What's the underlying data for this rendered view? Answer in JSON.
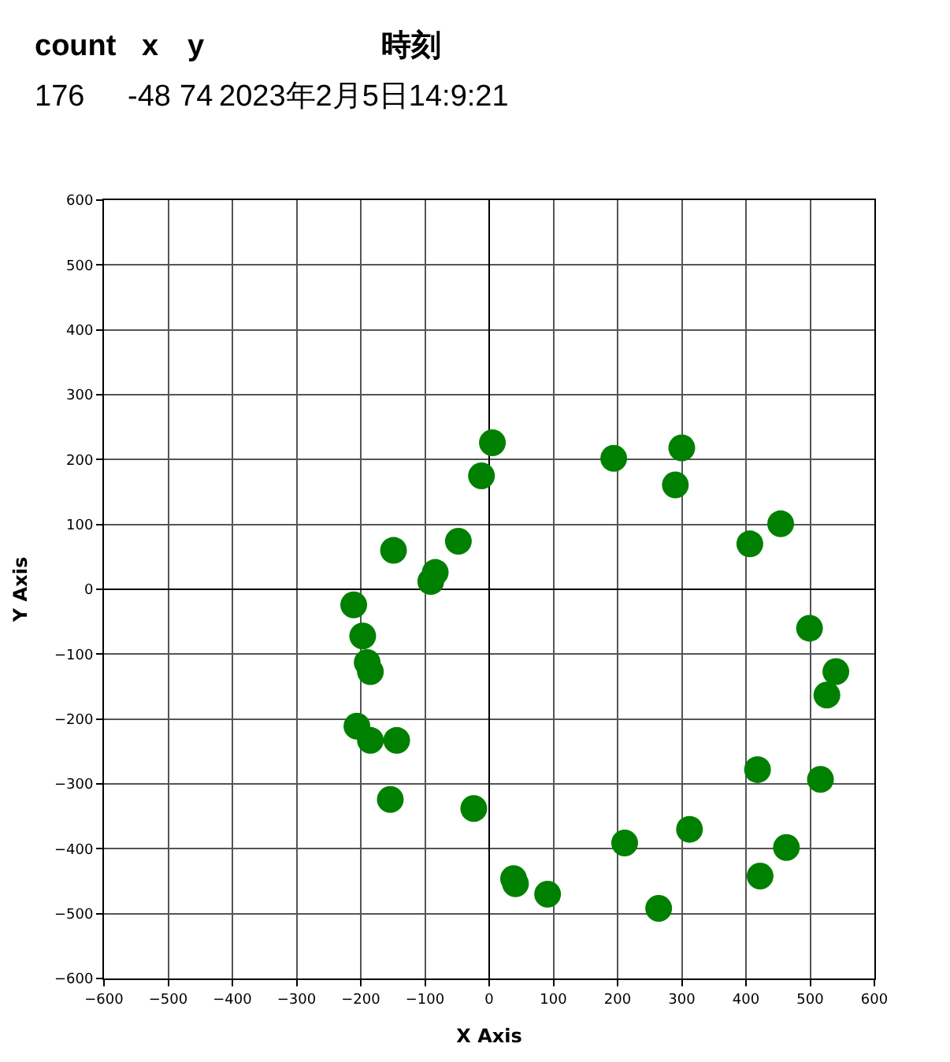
{
  "chart_data": {
    "type": "scatter",
    "xlabel": "X Axis",
    "ylabel": "Y Axis",
    "annotations": [
      "count",
      "x",
      "y",
      "時刻",
      "176",
      "-48",
      "74",
      "2023年2月5日14:9:21"
    ],
    "x": [
      5,
      -12,
      -48,
      -149,
      -84,
      -91,
      -211,
      -197,
      -190,
      -185,
      -206,
      -185,
      -144,
      -154,
      -24,
      38,
      41,
      91,
      264,
      194,
      300,
      290,
      454,
      406,
      499,
      540,
      526,
      418,
      516,
      312,
      211,
      463,
      422
    ],
    "series": [
      {
        "color": "#008000",
        "values": [
          226,
          175,
          74,
          60,
          26,
          12,
          -24,
          -72,
          -113,
          -127,
          -211,
          -233,
          -233,
          -324,
          -338,
          -446,
          -454,
          -470,
          -492,
          202,
          218,
          161,
          101,
          70,
          -60,
          -127,
          -163,
          -278,
          -293,
          -370,
          -391,
          -398,
          -442
        ]
      }
    ],
    "xlim": [
      -600,
      600
    ],
    "ylim": [
      -600,
      600
    ],
    "xticks": [
      -600,
      -500,
      -400,
      -300,
      -200,
      -100,
      0,
      100,
      200,
      300,
      400,
      500,
      600
    ],
    "yticks": [
      -600,
      -500,
      -400,
      -300,
      -200,
      -100,
      0,
      100,
      200,
      300,
      400,
      500,
      600
    ],
    "grid": true,
    "marker": "circle"
  }
}
